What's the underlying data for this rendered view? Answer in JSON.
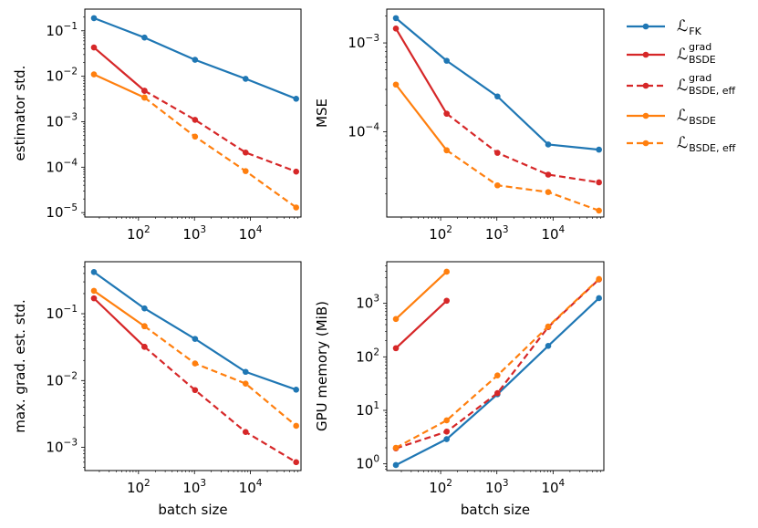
{
  "chart_data": [
    {
      "type": "line",
      "xscale": "log",
      "yscale": "log",
      "xlim": [
        11,
        80000
      ],
      "ylim": [
        8e-06,
        0.3
      ],
      "xticks": [
        100,
        1000,
        10000
      ],
      "xtick_labels": [
        {
          "base": "10",
          "exp": "2"
        },
        {
          "base": "10",
          "exp": "3"
        },
        {
          "base": "10",
          "exp": "4"
        }
      ],
      "yticks": [
        1e-05,
        0.0001,
        0.001,
        0.01,
        0.1
      ],
      "ytick_labels": [
        {
          "base": "10",
          "exp": "−5"
        },
        {
          "base": "10",
          "exp": "−4"
        },
        {
          "base": "10",
          "exp": "−3"
        },
        {
          "base": "10",
          "exp": "−2"
        },
        {
          "base": "10",
          "exp": "−1"
        }
      ],
      "xlabel": "",
      "ylabel": "estimator std.",
      "series": [
        {
          "name": "L_FK",
          "x": [
            16,
            128,
            1024,
            8192,
            65536
          ],
          "y": [
            0.19,
            0.071,
            0.023,
            0.0088,
            0.0032
          ]
        },
        {
          "name": "L_BSDE_grad",
          "x": [
            16,
            128
          ],
          "y": [
            0.043,
            0.0048
          ]
        },
        {
          "name": "L_BSDE_grad_eff",
          "x": [
            128,
            1024,
            8192,
            65536
          ],
          "y": [
            0.0048,
            0.0011,
            0.00021,
            8e-05
          ]
        },
        {
          "name": "L_BSDE",
          "x": [
            16,
            128
          ],
          "y": [
            0.011,
            0.0034
          ]
        },
        {
          "name": "L_BSDE_eff",
          "x": [
            128,
            1024,
            8192,
            65536
          ],
          "y": [
            0.0034,
            0.00047,
            8.2e-05,
            1.3e-05
          ]
        }
      ]
    },
    {
      "type": "line",
      "xscale": "log",
      "yscale": "log",
      "xlim": [
        11,
        80000
      ],
      "ylim": [
        1.1e-05,
        0.0024
      ],
      "xticks": [
        100,
        1000,
        10000
      ],
      "xtick_labels": [
        {
          "base": "10",
          "exp": "2"
        },
        {
          "base": "10",
          "exp": "3"
        },
        {
          "base": "10",
          "exp": "4"
        }
      ],
      "yticks": [
        0.0001,
        0.001
      ],
      "ytick_labels": [
        {
          "base": "10",
          "exp": "−4"
        },
        {
          "base": "10",
          "exp": "−3"
        }
      ],
      "xlabel": "",
      "ylabel": "MSE",
      "series": [
        {
          "name": "L_FK",
          "x": [
            16,
            128,
            1024,
            8192,
            65536
          ],
          "y": [
            0.0019,
            0.00063,
            0.00025,
            7.2e-05,
            6.3e-05
          ]
        },
        {
          "name": "L_BSDE_grad",
          "x": [
            16,
            128
          ],
          "y": [
            0.00145,
            0.00016
          ]
        },
        {
          "name": "L_BSDE_grad_eff",
          "x": [
            128,
            1024,
            8192,
            65536
          ],
          "y": [
            0.00016,
            5.8e-05,
            3.3e-05,
            2.7e-05
          ]
        },
        {
          "name": "L_BSDE",
          "x": [
            16,
            128
          ],
          "y": [
            0.00034,
            6.2e-05
          ]
        },
        {
          "name": "L_BSDE_eff",
          "x": [
            128,
            1024,
            8192,
            65536
          ],
          "y": [
            6.2e-05,
            2.5e-05,
            2.1e-05,
            1.3e-05
          ]
        }
      ]
    },
    {
      "type": "line",
      "xscale": "log",
      "yscale": "log",
      "xlim": [
        11,
        80000
      ],
      "ylim": [
        0.00045,
        0.6
      ],
      "xticks": [
        100,
        1000,
        10000
      ],
      "xtick_labels": [
        {
          "base": "10",
          "exp": "2"
        },
        {
          "base": "10",
          "exp": "3"
        },
        {
          "base": "10",
          "exp": "4"
        }
      ],
      "yticks": [
        0.001,
        0.01,
        0.1
      ],
      "ytick_labels": [
        {
          "base": "10",
          "exp": "−3"
        },
        {
          "base": "10",
          "exp": "−2"
        },
        {
          "base": "10",
          "exp": "−1"
        }
      ],
      "xlabel": "batch size",
      "ylabel": "max. grad. est. std.",
      "series": [
        {
          "name": "L_FK",
          "x": [
            16,
            128,
            1024,
            8192,
            65536
          ],
          "y": [
            0.42,
            0.12,
            0.042,
            0.0135,
            0.0073
          ]
        },
        {
          "name": "L_BSDE_grad",
          "x": [
            16,
            128
          ],
          "y": [
            0.17,
            0.032
          ]
        },
        {
          "name": "L_BSDE_grad_eff",
          "x": [
            128,
            1024,
            8192,
            65536
          ],
          "y": [
            0.032,
            0.0072,
            0.0017,
            0.0006
          ]
        },
        {
          "name": "L_BSDE",
          "x": [
            16,
            128
          ],
          "y": [
            0.22,
            0.065
          ]
        },
        {
          "name": "L_BSDE_eff",
          "x": [
            128,
            1024,
            8192,
            65536
          ],
          "y": [
            0.065,
            0.018,
            0.009,
            0.0021
          ]
        }
      ]
    },
    {
      "type": "line",
      "xscale": "log",
      "yscale": "log",
      "xlim": [
        11,
        80000
      ],
      "ylim": [
        0.75,
        6000
      ],
      "xticks": [
        100,
        1000,
        10000
      ],
      "xtick_labels": [
        {
          "base": "10",
          "exp": "2"
        },
        {
          "base": "10",
          "exp": "3"
        },
        {
          "base": "10",
          "exp": "4"
        }
      ],
      "yticks": [
        1,
        10,
        100,
        1000
      ],
      "ytick_labels": [
        {
          "base": "10",
          "exp": "0"
        },
        {
          "base": "10",
          "exp": "1"
        },
        {
          "base": "10",
          "exp": "2"
        },
        {
          "base": "10",
          "exp": "3"
        }
      ],
      "xlabel": "batch size",
      "ylabel": "GPU memory (MiB)",
      "series": [
        {
          "name": "L_FK",
          "x": [
            16,
            128,
            1024,
            8192,
            65536
          ],
          "y": [
            0.95,
            2.9,
            20,
            160,
            1250
          ]
        },
        {
          "name": "L_BSDE_grad",
          "x": [
            16,
            128
          ],
          "y": [
            145,
            1120
          ]
        },
        {
          "name": "L_BSDE_grad_eff",
          "x": [
            16,
            128,
            1024,
            8192,
            65536
          ],
          "y": [
            1.95,
            4,
            21,
            360,
            2800
          ]
        },
        {
          "name": "L_BSDE",
          "x": [
            16,
            128
          ],
          "y": [
            510,
            3900
          ]
        },
        {
          "name": "L_BSDE_eff",
          "x": [
            16,
            128,
            1024,
            8192,
            65536
          ],
          "y": [
            2,
            6.5,
            45,
            370,
            2850
          ]
        }
      ]
    }
  ],
  "legend": {
    "placement": "outside-right",
    "entries": [
      {
        "key": "L_FK",
        "symbol": "ℒ",
        "sub": "FK",
        "sup": "",
        "color": "#1f77b4",
        "dashed": false
      },
      {
        "key": "L_BSDE_grad",
        "symbol": "ℒ",
        "sub": "BSDE",
        "sup": "grad",
        "color": "#d62728",
        "dashed": false
      },
      {
        "key": "L_BSDE_grad_eff",
        "symbol": "ℒ",
        "sub": "BSDE, eff",
        "sup": "grad",
        "color": "#d62728",
        "dashed": true
      },
      {
        "key": "L_BSDE",
        "symbol": "ℒ",
        "sub": "BSDE",
        "sup": "",
        "color": "#ff7f0e",
        "dashed": false
      },
      {
        "key": "L_BSDE_eff",
        "symbol": "ℒ",
        "sub": "BSDE, eff",
        "sup": "",
        "color": "#ff7f0e",
        "dashed": true
      }
    ]
  }
}
